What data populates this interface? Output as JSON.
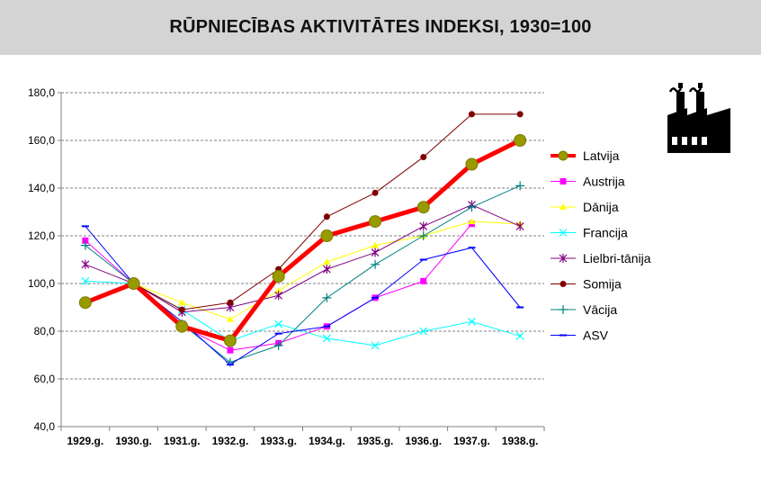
{
  "title": "RŪPNIECĪBAS AKTIVITĀTES INDEKSI, 1930=100",
  "icon": "factory-icon",
  "chart_data": {
    "type": "line",
    "title": "RŪPNIECĪBAS AKTIVITĀTES INDEKSI, 1930=100",
    "categories": [
      "1929.g.",
      "1930.g.",
      "1931.g.",
      "1932.g.",
      "1933.g.",
      "1934.g.",
      "1935.g.",
      "1936.g.",
      "1937.g.",
      "1938.g."
    ],
    "ylim": [
      40,
      180
    ],
    "yticks": [
      "40,0",
      "60,0",
      "80,0",
      "100,0",
      "120,0",
      "140,0",
      "160,0",
      "180,0"
    ],
    "grid": true,
    "legend_position": "right",
    "series": [
      {
        "name": "Latvija",
        "color": "#ff0000",
        "marker": "circle-olive",
        "values": [
          92,
          100,
          82,
          76,
          103,
          120,
          126,
          132,
          150,
          160
        ]
      },
      {
        "name": "Austrija",
        "color": "#ff00ff",
        "marker": "square",
        "values": [
          118,
          100,
          82,
          72,
          75,
          82,
          94,
          101,
          125,
          null
        ]
      },
      {
        "name": "Dānija",
        "color": "#ffff00",
        "marker": "triangle",
        "values": [
          null,
          100,
          92,
          85,
          97,
          109,
          116,
          120,
          126,
          125
        ]
      },
      {
        "name": "Francija",
        "color": "#00ffff",
        "marker": "x",
        "values": [
          101,
          100,
          89,
          76,
          83,
          77,
          74,
          80,
          84,
          78
        ]
      },
      {
        "name": "Lielbri-tānija",
        "color": "#800080",
        "marker": "star",
        "values": [
          108,
          100,
          88,
          90,
          95,
          106,
          113,
          124,
          133,
          124
        ]
      },
      {
        "name": "Somija",
        "color": "#800000",
        "marker": "circle",
        "values": [
          null,
          100,
          89,
          92,
          106,
          128,
          138,
          153,
          171,
          171
        ]
      },
      {
        "name": "Vācija",
        "color": "#008080",
        "marker": "plus",
        "values": [
          116,
          100,
          83,
          67,
          74,
          94,
          108,
          120,
          132,
          141
        ]
      },
      {
        "name": "ASV",
        "color": "#0000ff",
        "marker": "dash",
        "values": [
          124,
          100,
          84,
          66,
          79,
          82,
          94,
          110,
          115,
          90
        ]
      }
    ]
  }
}
